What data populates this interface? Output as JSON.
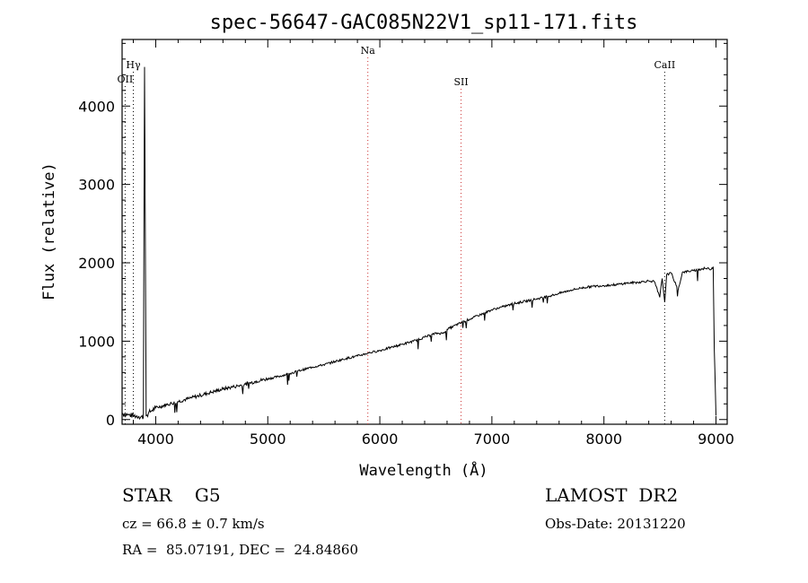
{
  "chart_data": {
    "type": "line",
    "title": "spec-56647-GAC085N22V1_sp11-171.fits",
    "xlabel": "Wavelength (Å)",
    "ylabel": "Flux (relative)",
    "xlim": [
      3700,
      9100
    ],
    "ylim": [
      -60,
      4850
    ],
    "xticks": [
      4000,
      5000,
      6000,
      7000,
      8000,
      9000
    ],
    "yticks": [
      0,
      1000,
      2000,
      3000,
      4000
    ],
    "grid": false,
    "series": [
      {
        "x": [
          3700,
          3750,
          3800,
          3850,
          3890,
          3900,
          3915,
          3935,
          3968,
          4000,
          4100,
          4200,
          4300,
          4400,
          4500,
          4600,
          4700,
          4800,
          4900,
          5000,
          5100,
          5200,
          5300,
          5400,
          5500,
          5600,
          5700,
          5800,
          5900,
          6000,
          6100,
          6200,
          6300,
          6400,
          6500,
          6563,
          6600,
          6700,
          6800,
          6900,
          7000,
          7100,
          7200,
          7300,
          7400,
          7500,
          7600,
          7700,
          7800,
          7900,
          8000,
          8100,
          8200,
          8300,
          8400,
          8450,
          8498,
          8520,
          8542,
          8560,
          8600,
          8662,
          8700,
          8800,
          8900,
          8960,
          8975,
          8985,
          9000
        ],
        "y": [
          80,
          60,
          50,
          40,
          30,
          4500,
          50,
          80,
          120,
          150,
          190,
          230,
          270,
          310,
          350,
          390,
          420,
          450,
          490,
          520,
          550,
          590,
          630,
          670,
          700,
          740,
          780,
          810,
          850,
          880,
          920,
          960,
          1000,
          1050,
          1100,
          1100,
          1150,
          1220,
          1280,
          1340,
          1400,
          1440,
          1480,
          1510,
          1540,
          1570,
          1610,
          1650,
          1680,
          1700,
          1710,
          1720,
          1740,
          1750,
          1770,
          1760,
          1560,
          1800,
          1500,
          1850,
          1870,
          1650,
          1880,
          1900,
          1930,
          1920,
          1950,
          900,
          50
        ]
      }
    ],
    "line_labels": [
      {
        "text": "OII",
        "x": 3727,
        "color": "#000000"
      },
      {
        "text": "Hγ",
        "x": 3800,
        "color": "#000000"
      },
      {
        "text": "Na",
        "x": 5893,
        "color": "#cc3333"
      },
      {
        "text": "SII",
        "x": 6725,
        "color": "#cc3333"
      },
      {
        "text": "CaII",
        "x": 8542,
        "color": "#000000"
      }
    ]
  },
  "info": {
    "class_line": "STAR    G5",
    "survey": "LAMOST  DR2",
    "cz": "cz = 66.8 ± 0.7 km/s",
    "obs_date": "Obs-Date: 20131220",
    "radec": "RA =  85.07191, DEC =  24.84860"
  }
}
